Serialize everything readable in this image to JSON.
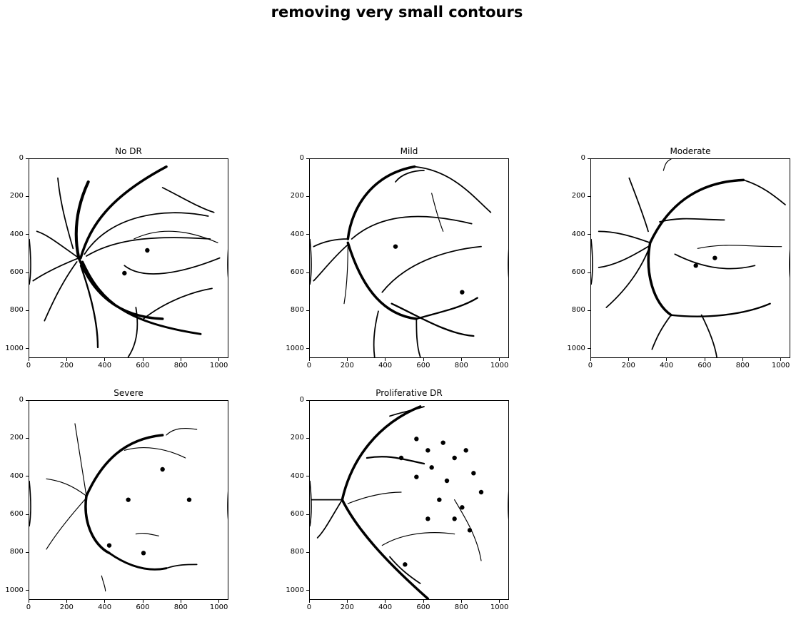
{
  "suptitle": "removing very small contours",
  "panels": [
    {
      "title": "No DR",
      "id": "no-dr"
    },
    {
      "title": "Mild",
      "id": "mild"
    },
    {
      "title": "Moderate",
      "id": "moderate"
    },
    {
      "title": "Severe",
      "id": "severe"
    },
    {
      "title": "Proliferative DR",
      "id": "proliferative-dr"
    }
  ],
  "x_ticks": [
    "0",
    "200",
    "400",
    "600",
    "800",
    "1000"
  ],
  "y_ticks": [
    "0",
    "200",
    "400",
    "600",
    "800",
    "1000"
  ],
  "image_extent": [
    0,
    1050
  ],
  "colors": {
    "vessel": "#000000",
    "background": "#ffffff"
  }
}
